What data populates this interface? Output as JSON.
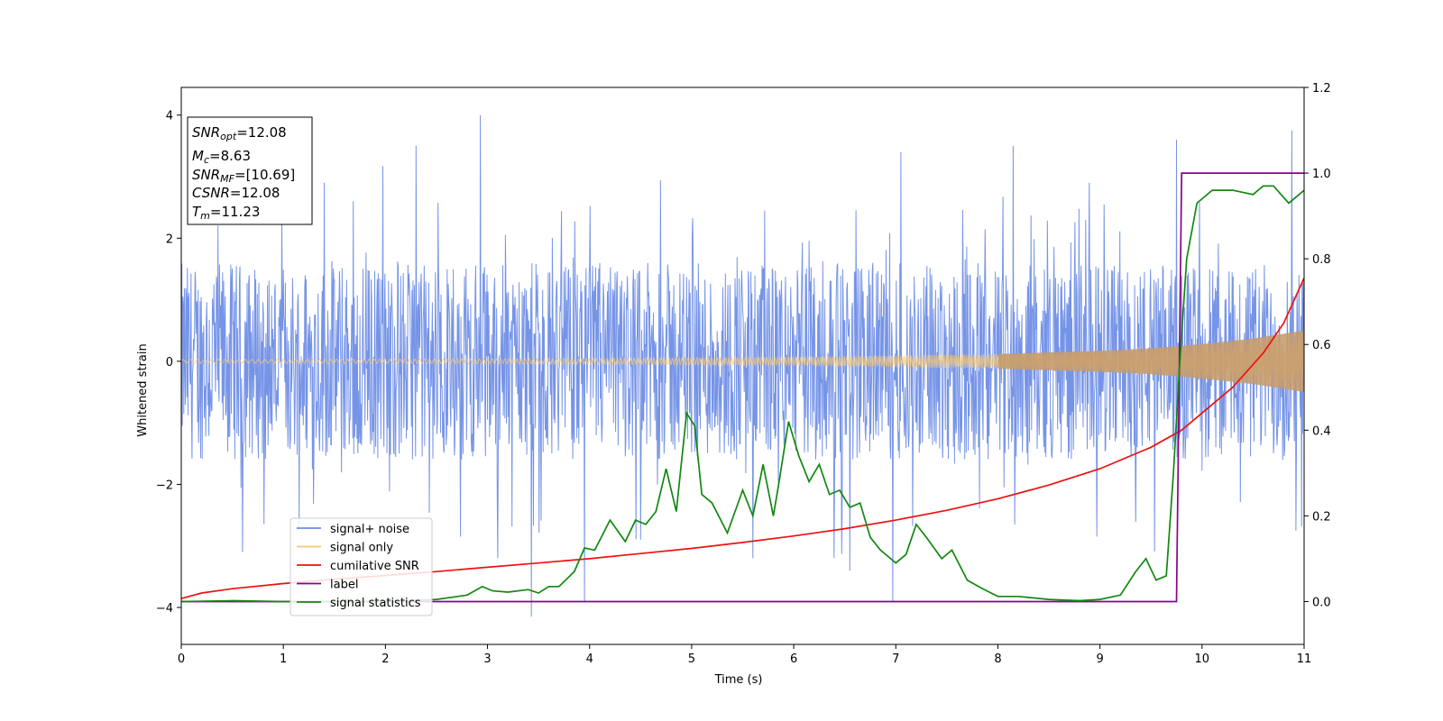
{
  "chart_data": {
    "type": "line",
    "title": "",
    "xlabel": "Time (s)",
    "ylabel": "Whitened strain",
    "xlim": [
      0,
      11
    ],
    "ylim": [
      -4.6,
      4.45
    ],
    "y2lim": [
      -0.1,
      1.2
    ],
    "xticks": [
      "0",
      "1",
      "2",
      "3",
      "4",
      "5",
      "6",
      "7",
      "8",
      "9",
      "10",
      "11"
    ],
    "yticks": [
      "-4",
      "-2",
      "0",
      "2",
      "4"
    ],
    "y2ticks": [
      "0.0",
      "0.2",
      "0.4",
      "0.6",
      "0.8",
      "1.0",
      "1.2"
    ],
    "grid": false,
    "legend_position": "lower-left",
    "colors": {
      "signal_noise": "#6f8ee6",
      "signal_only": "#f5c878",
      "cumulative_snr": "#ee1111",
      "label": "#8b008b",
      "signal_statistics": "#118811"
    },
    "legend": [
      {
        "name": "signal+ noise",
        "color": "#6f8ee6"
      },
      {
        "name": "signal only",
        "color": "#f5c878"
      },
      {
        "name": "cumilative SNR",
        "color": "#ee1111"
      },
      {
        "name": "label",
        "color": "#8b008b"
      },
      {
        "name": "signal statistics",
        "color": "#118811"
      }
    ],
    "annotations": [
      {
        "name": "SNR",
        "sub": "opt",
        "value": "=12.08"
      },
      {
        "name": "M",
        "sub": "c",
        "value": "=8.63"
      },
      {
        "name": "SNR",
        "sub": "MF",
        "value": "=[10.69]"
      },
      {
        "name": "CSNR",
        "sub": "",
        "value": "=12.08"
      },
      {
        "name": "T",
        "sub": "m",
        "value": "=11.23"
      }
    ],
    "series": [
      {
        "name": "signal+ noise",
        "axis": "left",
        "style": "noise band",
        "amplitude_envelope": [
          [
            0,
            1.6
          ],
          [
            11,
            1.6
          ]
        ],
        "peak_spikes": [
          [
            0.6,
            -3.1
          ],
          [
            1.4,
            2.9
          ],
          [
            2.3,
            3.5
          ],
          [
            2.93,
            4.0
          ],
          [
            3.1,
            -3.2
          ],
          [
            3.43,
            -4.15
          ],
          [
            3.95,
            -3.9
          ],
          [
            4.5,
            -2.9
          ],
          [
            5.6,
            -3.2
          ],
          [
            6.55,
            -3.4
          ],
          [
            6.97,
            -3.9
          ],
          [
            7.05,
            3.4
          ],
          [
            8.15,
            3.5
          ],
          [
            9.75,
            3.6
          ],
          [
            10.88,
            3.75
          ]
        ]
      },
      {
        "name": "signal only",
        "axis": "left",
        "style": "oscillation",
        "amplitude_envelope": [
          [
            0,
            0.03
          ],
          [
            2,
            0.035
          ],
          [
            4,
            0.045
          ],
          [
            6,
            0.07
          ],
          [
            8,
            0.12
          ],
          [
            9,
            0.17
          ],
          [
            9.5,
            0.21
          ],
          [
            10,
            0.28
          ],
          [
            10.5,
            0.37
          ],
          [
            11,
            0.5
          ]
        ]
      },
      {
        "name": "cumilative SNR",
        "axis": "right",
        "points": [
          [
            0,
            0.007
          ],
          [
            0.2,
            0.02
          ],
          [
            0.5,
            0.03
          ],
          [
            1,
            0.042
          ],
          [
            1.5,
            0.052
          ],
          [
            2,
            0.061
          ],
          [
            2.5,
            0.07
          ],
          [
            3,
            0.08
          ],
          [
            3.5,
            0.09
          ],
          [
            4,
            0.1
          ],
          [
            4.5,
            0.112
          ],
          [
            5,
            0.124
          ],
          [
            5.5,
            0.138
          ],
          [
            6,
            0.153
          ],
          [
            6.5,
            0.17
          ],
          [
            7,
            0.19
          ],
          [
            7.5,
            0.213
          ],
          [
            8,
            0.24
          ],
          [
            8.5,
            0.272
          ],
          [
            9,
            0.31
          ],
          [
            9.5,
            0.36
          ],
          [
            9.8,
            0.4
          ],
          [
            10,
            0.44
          ],
          [
            10.3,
            0.5
          ],
          [
            10.6,
            0.58
          ],
          [
            10.8,
            0.65
          ],
          [
            11,
            0.755
          ]
        ]
      },
      {
        "name": "label",
        "axis": "right",
        "points": [
          [
            0,
            0.0
          ],
          [
            9.75,
            0.0
          ],
          [
            9.8,
            1.0
          ],
          [
            11,
            1.0
          ]
        ]
      },
      {
        "name": "signal statistics",
        "axis": "right",
        "points": [
          [
            0,
            0.0
          ],
          [
            0.5,
            0.002
          ],
          [
            1,
            0.0
          ],
          [
            2,
            0.0
          ],
          [
            2.5,
            0.005
          ],
          [
            2.8,
            0.015
          ],
          [
            2.95,
            0.035
          ],
          [
            3.05,
            0.025
          ],
          [
            3.2,
            0.022
          ],
          [
            3.4,
            0.028
          ],
          [
            3.5,
            0.02
          ],
          [
            3.6,
            0.035
          ],
          [
            3.7,
            0.035
          ],
          [
            3.85,
            0.07
          ],
          [
            3.95,
            0.125
          ],
          [
            4.05,
            0.12
          ],
          [
            4.2,
            0.19
          ],
          [
            4.35,
            0.14
          ],
          [
            4.45,
            0.19
          ],
          [
            4.55,
            0.18
          ],
          [
            4.65,
            0.21
          ],
          [
            4.75,
            0.31
          ],
          [
            4.85,
            0.21
          ],
          [
            4.95,
            0.44
          ],
          [
            5.03,
            0.41
          ],
          [
            5.1,
            0.25
          ],
          [
            5.2,
            0.23
          ],
          [
            5.35,
            0.16
          ],
          [
            5.5,
            0.26
          ],
          [
            5.6,
            0.2
          ],
          [
            5.7,
            0.32
          ],
          [
            5.8,
            0.2
          ],
          [
            5.85,
            0.27
          ],
          [
            5.95,
            0.42
          ],
          [
            6.05,
            0.34
          ],
          [
            6.15,
            0.28
          ],
          [
            6.25,
            0.32
          ],
          [
            6.35,
            0.25
          ],
          [
            6.45,
            0.26
          ],
          [
            6.55,
            0.22
          ],
          [
            6.65,
            0.23
          ],
          [
            6.75,
            0.15
          ],
          [
            6.85,
            0.12
          ],
          [
            6.95,
            0.1
          ],
          [
            7.0,
            0.09
          ],
          [
            7.1,
            0.11
          ],
          [
            7.2,
            0.18
          ],
          [
            7.3,
            0.15
          ],
          [
            7.45,
            0.1
          ],
          [
            7.55,
            0.12
          ],
          [
            7.7,
            0.05
          ],
          [
            7.85,
            0.03
          ],
          [
            8.0,
            0.012
          ],
          [
            8.2,
            0.012
          ],
          [
            8.5,
            0.005
          ],
          [
            8.8,
            0.002
          ],
          [
            9.0,
            0.005
          ],
          [
            9.2,
            0.015
          ],
          [
            9.35,
            0.07
          ],
          [
            9.45,
            0.1
          ],
          [
            9.55,
            0.05
          ],
          [
            9.65,
            0.06
          ],
          [
            9.72,
            0.3
          ],
          [
            9.78,
            0.55
          ],
          [
            9.85,
            0.8
          ],
          [
            9.95,
            0.93
          ],
          [
            10.1,
            0.96
          ],
          [
            10.3,
            0.96
          ],
          [
            10.5,
            0.95
          ],
          [
            10.6,
            0.97
          ],
          [
            10.7,
            0.97
          ],
          [
            10.85,
            0.93
          ],
          [
            11,
            0.96
          ]
        ]
      }
    ]
  }
}
